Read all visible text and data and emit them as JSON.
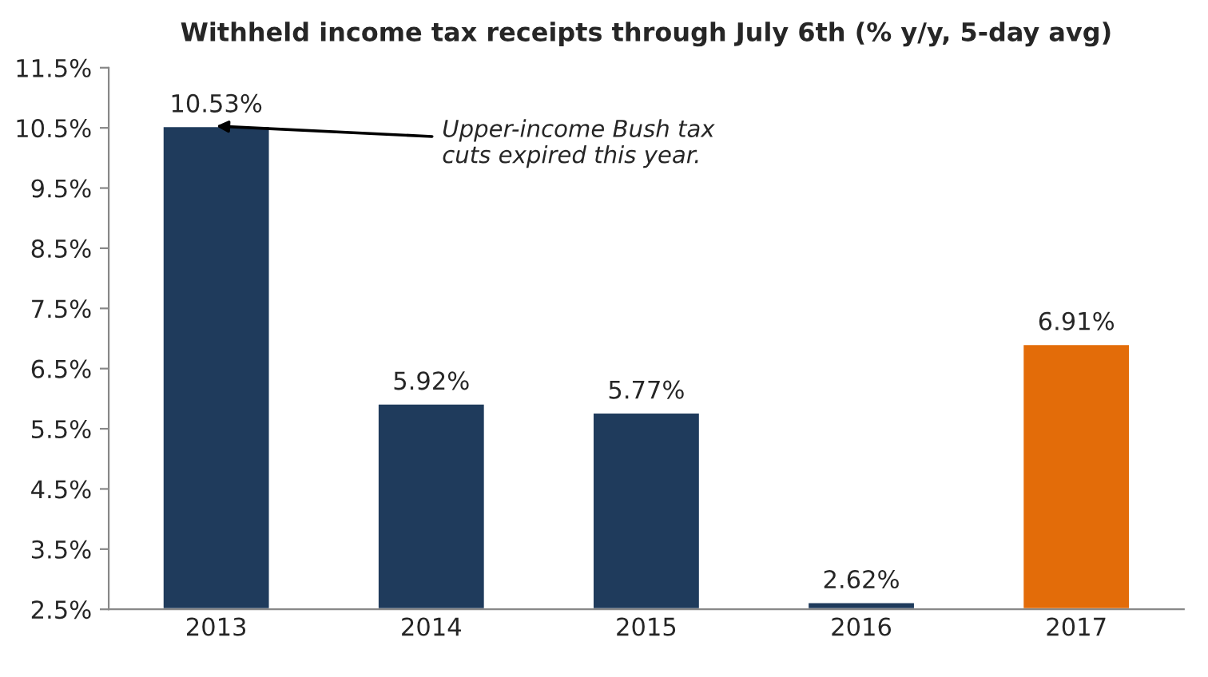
{
  "chart_data": {
    "type": "bar",
    "title": "Withheld income tax receipts through July 6th (% y/y, 5-day avg)",
    "categories": [
      "2013",
      "2014",
      "2015",
      "2016",
      "2017"
    ],
    "values": [
      10.53,
      5.92,
      5.77,
      2.62,
      6.91
    ],
    "colors": [
      "#1f3b5c",
      "#1f3b5c",
      "#1f3b5c",
      "#1f3b5c",
      "#e36c09"
    ],
    "value_labels": [
      "10.53%",
      "5.92%",
      "5.77%",
      "2.62%",
      "6.91%"
    ],
    "ylim": [
      2.5,
      11.5
    ],
    "yticks": [
      {
        "value": 2.5,
        "label": "2.5%"
      },
      {
        "value": 3.5,
        "label": "3.5%"
      },
      {
        "value": 4.5,
        "label": "4.5%"
      },
      {
        "value": 5.5,
        "label": "5.5%"
      },
      {
        "value": 6.5,
        "label": "6.5%"
      },
      {
        "value": 7.5,
        "label": "7.5%"
      },
      {
        "value": 8.5,
        "label": "8.5%"
      },
      {
        "value": 9.5,
        "label": "9.5%"
      },
      {
        "value": 10.5,
        "label": "10.5%"
      },
      {
        "value": 11.5,
        "label": "11.5%"
      }
    ],
    "annotations": [
      {
        "text": "Upper-income Bush tax\ncuts expired this year.",
        "x": "2013",
        "y": 10.53
      }
    ],
    "grid": false,
    "legend": false
  }
}
